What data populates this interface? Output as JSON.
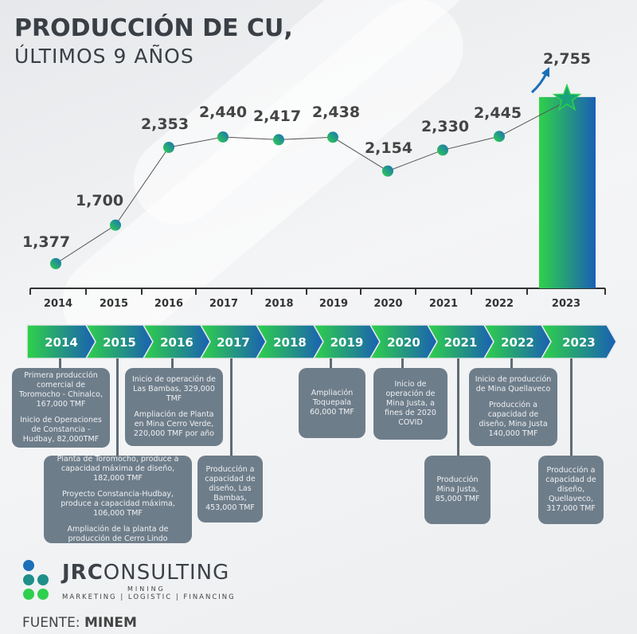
{
  "title_line1": "PRODUCCIÓN DE CU,",
  "title_line2": "ÚLTIMOS 9 AÑOS",
  "chart_data": {
    "type": "line",
    "title": "PRODUCCIÓN DE CU, ÚLTIMOS 9 AÑOS",
    "categories": [
      "2014",
      "2015",
      "2016",
      "2017",
      "2018",
      "2019",
      "2020",
      "2021",
      "2022",
      "2023"
    ],
    "values": [
      1377,
      1700,
      2353,
      2440,
      2417,
      2438,
      2154,
      2330,
      2445,
      2755
    ],
    "labels": [
      "1,377",
      "1,700",
      "2,353",
      "2,440",
      "2,417",
      "2,438",
      "2,154",
      "2,330",
      "2,445",
      "2,755"
    ],
    "xlabel": "",
    "ylabel": "",
    "grid": false
  },
  "colors": {
    "green": "#2fd14a",
    "blue": "#1a5fb4",
    "box": "#6e7d8a"
  },
  "timeline": [
    "2014",
    "2015",
    "2016",
    "2017",
    "2018",
    "2019",
    "2020",
    "2021",
    "2022",
    "2023"
  ],
  "events": [
    {
      "year": "2014",
      "lines": [
        "Primera producción comercial de Toromocho - Chinalco, 167,000 TMF",
        "Inicio de Operaciones de Constancia - Hudbay, 82,000TMF"
      ]
    },
    {
      "year": "2016",
      "lines": [
        "Inicio de operación de Las Bambas, 329,000 TMF",
        "Ampliación de Planta en Mina Cerro Verde, 220,000 TMF por año"
      ]
    },
    {
      "year": "2015",
      "lines": [
        "Planta de Toromocho, produce a capacidad máxima de diseño, 182,000 TMF",
        "Proyecto Constancia-Hudbay, produce a capacidad máxima, 106,000 TMF",
        "Ampliación de la planta de producción de Cerro Lindo"
      ]
    },
    {
      "year": "2017",
      "lines": [
        "Producción a capacidad de diseño, Las Bambas, 453,000 TMF"
      ]
    },
    {
      "year": "2019",
      "lines": [
        "Ampliación Toquepala 60,000 TMF"
      ]
    },
    {
      "year": "2020",
      "lines": [
        "Inicio de operación de Mina Justa, a fines de 2020 COVID"
      ]
    },
    {
      "year": "2021",
      "lines": [
        "Producción Mina Justa, 85,000 TMF"
      ]
    },
    {
      "year": "2022",
      "lines": [
        "Inicio de producción de Mina Quellaveco",
        "Producción a capacidad de diseño, Mina Justa 140,000 TMF"
      ]
    },
    {
      "year": "2023",
      "lines": [
        "Producción a capacidad de diseño, Quellaveco, 317,000 TMF"
      ]
    }
  ],
  "logo": {
    "brand_bold": "JRC",
    "brand_rest": "ONSULTING",
    "mining": "MINING",
    "tagline": "MARKETING | LOGISTIC | FINANCING"
  },
  "source": {
    "label": "FUENTE:",
    "value": "MINEM"
  }
}
